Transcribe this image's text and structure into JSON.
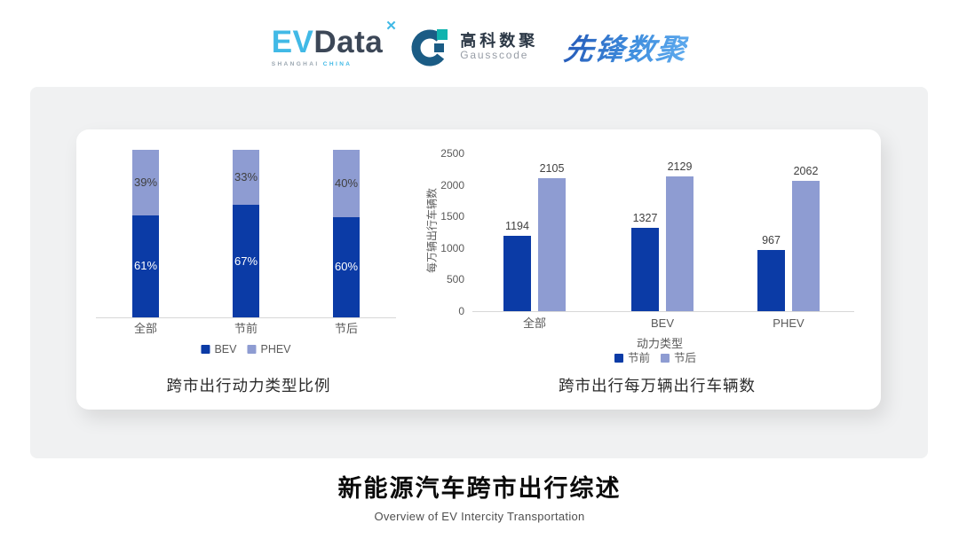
{
  "header": {
    "evdata": {
      "ev": "EV",
      "data": "Data",
      "mark": "✕",
      "sub_left": "SHANGHAI",
      "sub_right": "CHINA"
    },
    "gausscode": {
      "cn": "高科数聚",
      "en": "Gausscode"
    },
    "xianfeng": {
      "text": "先锋数聚"
    }
  },
  "chart_data": [
    {
      "type": "bar",
      "subtype": "stacked-percent",
      "title": "跨市出行动力类型比例",
      "categories": [
        "全部",
        "节前",
        "节后"
      ],
      "series": [
        {
          "name": "BEV",
          "color": "#0b3ba6",
          "values": [
            61,
            67,
            60
          ],
          "value_suffix": "%",
          "label_color": "#ffffff"
        },
        {
          "name": "PHEV",
          "color": "#8e9cd2",
          "values": [
            39,
            33,
            40
          ],
          "value_suffix": "%",
          "label_color": "#3f3f3f"
        }
      ],
      "ylim": [
        0,
        100
      ],
      "legend_position": "bottom",
      "grid": false
    },
    {
      "type": "bar",
      "subtype": "grouped",
      "title": "跨市出行每万辆出行车辆数",
      "xlabel": "动力类型",
      "ylabel": "每万辆出行车辆数",
      "categories": [
        "全部",
        "BEV",
        "PHEV"
      ],
      "yticks": [
        0,
        500,
        1000,
        1500,
        2000,
        2500
      ],
      "ylim": [
        0,
        2500
      ],
      "series": [
        {
          "name": "节前",
          "color": "#0b3ba6",
          "values": [
            1194,
            1327,
            967
          ]
        },
        {
          "name": "节后",
          "color": "#8e9cd2",
          "values": [
            2105,
            2129,
            2062
          ]
        }
      ],
      "legend_position": "bottom",
      "grid": false
    }
  ],
  "footer": {
    "title": "新能源汽车跨市出行综述",
    "subtitle": "Overview of EV Intercity Transportation"
  },
  "palette": {
    "primary_dark_blue": "#0b3ba6",
    "secondary_light_blue": "#8e9cd2",
    "card_gray": "#f0f1f2"
  }
}
